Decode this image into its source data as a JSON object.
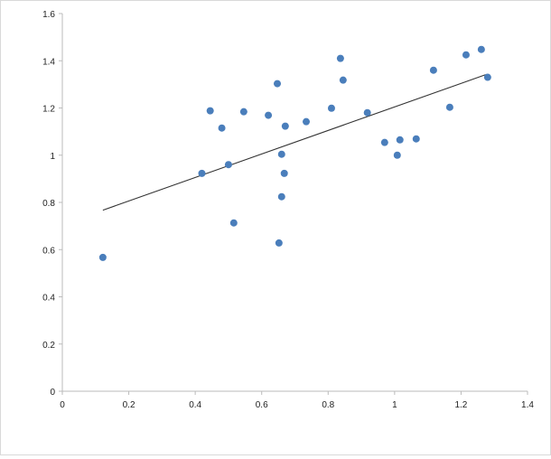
{
  "chart_data": {
    "type": "scatter",
    "title": "",
    "xlabel": "",
    "ylabel": "",
    "xlim": [
      0,
      1.4
    ],
    "ylim": [
      0,
      1.6
    ],
    "xticks": [
      "0",
      "0.2",
      "0.4",
      "0.6",
      "0.8",
      "1",
      "1.2",
      "1.4"
    ],
    "yticks": [
      "0",
      "0.2",
      "0.4",
      "0.6",
      "0.8",
      "1",
      "1.2",
      "1.4",
      "1.6"
    ],
    "grid": false,
    "legend": "none",
    "marker_color": "#4a7ebb",
    "trendline_color": "#333333",
    "points": [
      [
        0.122,
        0.567
      ],
      [
        0.42,
        0.923
      ],
      [
        0.445,
        1.188
      ],
      [
        0.48,
        1.115
      ],
      [
        0.5,
        0.96
      ],
      [
        0.516,
        0.713
      ],
      [
        0.546,
        1.184
      ],
      [
        0.62,
        1.169
      ],
      [
        0.647,
        1.303
      ],
      [
        0.652,
        0.628
      ],
      [
        0.66,
        0.824
      ],
      [
        0.66,
        1.004
      ],
      [
        0.668,
        0.923
      ],
      [
        0.671,
        1.123
      ],
      [
        0.734,
        1.142
      ],
      [
        0.81,
        1.199
      ],
      [
        0.837,
        1.41
      ],
      [
        0.845,
        1.318
      ],
      [
        0.918,
        1.18
      ],
      [
        0.97,
        1.054
      ],
      [
        1.008,
        1.0
      ],
      [
        1.016,
        1.065
      ],
      [
        1.065,
        1.069
      ],
      [
        1.117,
        1.36
      ],
      [
        1.166,
        1.203
      ],
      [
        1.215,
        1.425
      ],
      [
        1.261,
        1.448
      ],
      [
        1.28,
        1.33
      ]
    ],
    "trendline": {
      "x": [
        0.122,
        1.274
      ],
      "y": [
        0.767,
        1.341
      ]
    }
  }
}
